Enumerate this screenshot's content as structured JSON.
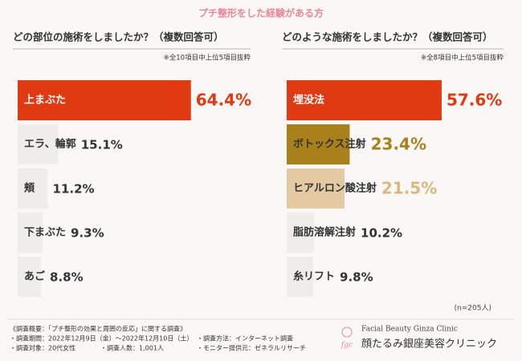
{
  "header": {
    "title": "プチ整形をした経験がある方"
  },
  "chart_data": [
    {
      "type": "bar",
      "title": "どの部位の施術をしましたか？（複数回答可）",
      "note": "※全10項目中上位5項目抜粋",
      "categories": [
        "上まぶた",
        "エラ、輪郭",
        "頬",
        "下まぶた",
        "あご"
      ],
      "values": [
        64.4,
        15.1,
        11.2,
        9.3,
        8.8
      ],
      "value_labels": [
        "64.4%",
        "15.1%",
        "11.2%",
        "9.3%",
        "8.8%"
      ],
      "colors": [
        "#e03a12",
        "#efedeb",
        "#efedeb",
        "#efedeb",
        "#efedeb"
      ],
      "label_colors": [
        "#ffffff",
        "#333333",
        "#333333",
        "#333333",
        "#333333"
      ],
      "value_label_colors": [
        "#e03a12",
        "#333333",
        "#333333",
        "#333333",
        "#333333"
      ]
    },
    {
      "type": "bar",
      "title": "どのような施術をしましたか？（複数回答可）",
      "note": "※全8項目中上位5項目抜粋",
      "categories": [
        "埋没法",
        "ボトックス注射",
        "ヒアルロン酸注射",
        "脂肪溶解注射",
        "糸リフト"
      ],
      "values": [
        57.6,
        23.4,
        21.5,
        10.2,
        9.8
      ],
      "value_labels": [
        "57.6%",
        "23.4%",
        "21.5%",
        "10.2%",
        "9.8%"
      ],
      "colors": [
        "#e03a12",
        "#a8801c",
        "#e4caa2",
        "#efedeb",
        "#efedeb"
      ],
      "label_colors": [
        "#ffffff",
        "#333333",
        "#333333",
        "#333333",
        "#333333"
      ],
      "value_label_colors": [
        "#e03a12",
        "#a8801c",
        "#d9b880",
        "#333333",
        "#333333"
      ]
    }
  ],
  "sample": "(n=205人)",
  "footer": {
    "lines": [
      "《調査概要：「プチ整形の効果と周囲の反応」に関する調査》",
      "・調査期間：2022年12月9日（金）～2022年12月10日（土）",
      "・調査方法：インターネット調査",
      "・調査対象：20代女性",
      "・調査人数：1,001人",
      "・モニター提供元：ゼネラルリサーチ"
    ],
    "logo_mark": "fgc",
    "clinic_en": "Facial Beauty Ginza Clinic",
    "clinic_ja": "顔たるみ銀座美容クリニック"
  }
}
